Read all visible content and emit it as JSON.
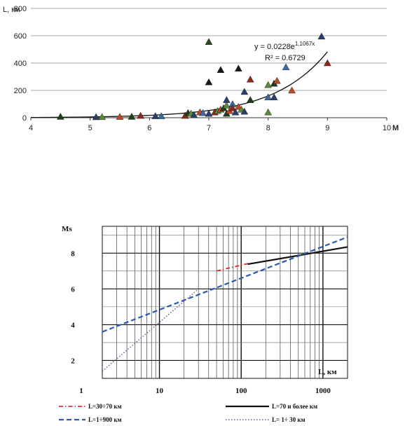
{
  "chart_data": [
    {
      "type": "scatter",
      "title": "",
      "ylabel": "L, км",
      "xlabel": "M",
      "xlim": [
        4,
        10
      ],
      "ylim": [
        0,
        800
      ],
      "xticks": [
        "4",
        "5",
        "6",
        "7",
        "8",
        "9",
        "10"
      ],
      "yticks": [
        "0",
        "200",
        "400",
        "600",
        "800"
      ],
      "grid": "horizontal",
      "equation": "y = 0.0228e",
      "equation_exp": "1.1067x",
      "r2_label": "R² = 0.6729",
      "trend": {
        "type": "exponential",
        "a": 0.0228,
        "b": 1.1067,
        "x_range": [
          4,
          9
        ]
      },
      "points": [
        {
          "x": 4.5,
          "y": 8,
          "c": "#1f3d1f"
        },
        {
          "x": 5.1,
          "y": 5,
          "c": "#2b3f6e"
        },
        {
          "x": 5.2,
          "y": 6,
          "c": "#5a8a3a"
        },
        {
          "x": 5.5,
          "y": 7,
          "c": "#b84a2a"
        },
        {
          "x": 5.7,
          "y": 8,
          "c": "#1f3d1f"
        },
        {
          "x": 5.85,
          "y": 15,
          "c": "#8b2a1a"
        },
        {
          "x": 6.1,
          "y": 12,
          "c": "#2b3f6e"
        },
        {
          "x": 6.2,
          "y": 12,
          "c": "#3a6aa0"
        },
        {
          "x": 6.6,
          "y": 15,
          "c": "#8b2a1a"
        },
        {
          "x": 6.65,
          "y": 35,
          "c": "#1f3d1f"
        },
        {
          "x": 6.7,
          "y": 30,
          "c": "#5a8a3a"
        },
        {
          "x": 6.75,
          "y": 20,
          "c": "#2b3f6e"
        },
        {
          "x": 6.85,
          "y": 40,
          "c": "#b84a2a"
        },
        {
          "x": 6.9,
          "y": 35,
          "c": "#3a6aa0"
        },
        {
          "x": 7.0,
          "y": 555,
          "c": "#2b4a1f"
        },
        {
          "x": 7.0,
          "y": 260,
          "c": "#1a1a1a"
        },
        {
          "x": 7.0,
          "y": 30,
          "c": "#2b3f6e"
        },
        {
          "x": 7.1,
          "y": 40,
          "c": "#8b2a1a"
        },
        {
          "x": 7.15,
          "y": 50,
          "c": "#5a8a3a"
        },
        {
          "x": 7.2,
          "y": 350,
          "c": "#1a1a1a"
        },
        {
          "x": 7.2,
          "y": 60,
          "c": "#b84a2a"
        },
        {
          "x": 7.25,
          "y": 70,
          "c": "#1f3d1f"
        },
        {
          "x": 7.3,
          "y": 130,
          "c": "#2b3f6e"
        },
        {
          "x": 7.3,
          "y": 90,
          "c": "#5a8a3a"
        },
        {
          "x": 7.3,
          "y": 30,
          "c": "#1f3d1f"
        },
        {
          "x": 7.35,
          "y": 50,
          "c": "#b84a2a"
        },
        {
          "x": 7.4,
          "y": 100,
          "c": "#3a6aa0"
        },
        {
          "x": 7.4,
          "y": 70,
          "c": "#8b2a1a"
        },
        {
          "x": 7.45,
          "y": 40,
          "c": "#2b3f6e"
        },
        {
          "x": 7.5,
          "y": 360,
          "c": "#1a1a1a"
        },
        {
          "x": 7.5,
          "y": 80,
          "c": "#b84a2a"
        },
        {
          "x": 7.55,
          "y": 60,
          "c": "#5a8a3a"
        },
        {
          "x": 7.6,
          "y": 190,
          "c": "#2b3f6e"
        },
        {
          "x": 7.6,
          "y": 45,
          "c": "#2b3f6e"
        },
        {
          "x": 7.7,
          "y": 280,
          "c": "#8b2a1a"
        },
        {
          "x": 7.7,
          "y": 130,
          "c": "#1f3d1f"
        },
        {
          "x": 8.0,
          "y": 240,
          "c": "#5a8a3a"
        },
        {
          "x": 8.0,
          "y": 150,
          "c": "#3a6aa0"
        },
        {
          "x": 8.0,
          "y": 40,
          "c": "#5a8a3a"
        },
        {
          "x": 8.1,
          "y": 250,
          "c": "#1f3d1f"
        },
        {
          "x": 8.1,
          "y": 150,
          "c": "#2b3f6e"
        },
        {
          "x": 8.15,
          "y": 270,
          "c": "#b84a2a"
        },
        {
          "x": 8.3,
          "y": 370,
          "c": "#3a6aa0"
        },
        {
          "x": 8.4,
          "y": 200,
          "c": "#b84a2a"
        },
        {
          "x": 8.9,
          "y": 595,
          "c": "#2b3f6e"
        },
        {
          "x": 9.0,
          "y": 400,
          "c": "#8b2a1a"
        }
      ]
    },
    {
      "type": "line",
      "title": "",
      "ylabel": "Ms",
      "xlabel": "L,  км",
      "xscale": "log",
      "xlim": [
        2,
        2000
      ],
      "ylim": [
        1,
        9.5
      ],
      "xticks": [
        "1",
        "10",
        "100",
        "1000"
      ],
      "yticks": [
        "2",
        "4",
        "6",
        "8"
      ],
      "grid": true,
      "series": [
        {
          "name": "L=30÷70 км",
          "style": "dashdot",
          "color": "#e03030",
          "x": [
            50,
            130
          ],
          "y": [
            7.0,
            7.45
          ]
        },
        {
          "name": "L=70 и более  км",
          "style": "solid",
          "color": "#111111",
          "x": [
            120,
            2000
          ],
          "y": [
            7.38,
            8.35
          ]
        },
        {
          "name": "L=1÷900 км",
          "style": "dashed",
          "color": "#2a5aa8",
          "x": [
            2,
            2000
          ],
          "y": [
            3.6,
            8.9
          ]
        },
        {
          "name": "L= 1÷ 30  км",
          "style": "dotted",
          "color": "#6a4a9a",
          "x": [
            2,
            30
          ],
          "y": [
            1.4,
            6.0
          ]
        }
      ]
    }
  ]
}
